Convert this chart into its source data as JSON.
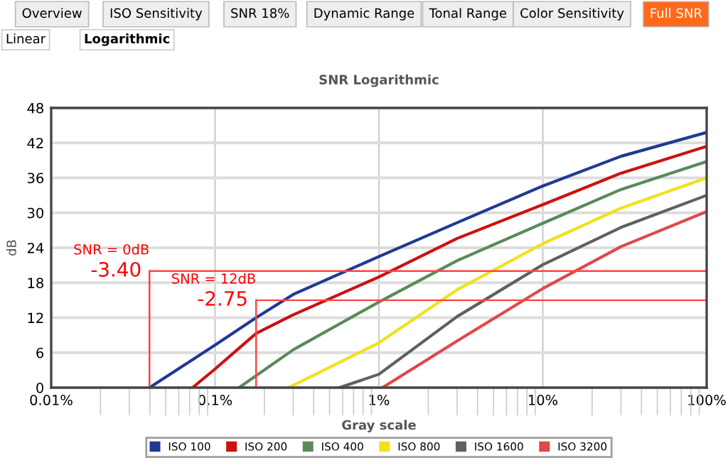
{
  "chart_data": {
    "type": "line",
    "title": "SNR Logarithmic",
    "xlabel": "Gray scale",
    "ylabel": "dB",
    "log": "x",
    "xlim": [
      0.01,
      100
    ],
    "xticks": [
      {
        "value": 0.01,
        "label": "0.01%"
      },
      {
        "value": 0.1,
        "label": "0.1%"
      },
      {
        "value": 1,
        "label": "1%"
      },
      {
        "value": 10,
        "label": "10%"
      },
      {
        "value": 100,
        "label": "100%"
      }
    ],
    "ylim": [
      0,
      48
    ],
    "yticks": [
      0,
      6,
      12,
      18,
      24,
      30,
      36,
      42,
      48
    ],
    "grid": true,
    "legend": "bottom",
    "marker": "none",
    "line_style": "solid",
    "series": [
      {
        "name": "ISO 100",
        "color": "#1f3a93",
        "x": [
          0.0398,
          0.1,
          0.178,
          0.3,
          1,
          3,
          10,
          30,
          100
        ],
        "values": [
          0,
          7.3,
          12,
          16,
          22.5,
          28.3,
          34.6,
          39.7,
          43.8
        ]
      },
      {
        "name": "ISO 200",
        "color": "#cc1111",
        "x": [
          0.0728,
          0.1,
          0.178,
          0.3,
          1,
          3,
          10,
          30,
          100
        ],
        "values": [
          0,
          3.2,
          9.3,
          12.5,
          19,
          25.6,
          31.4,
          36.8,
          41.4
        ]
      },
      {
        "name": "ISO 400",
        "color": "#5a8a5a",
        "x": [
          0.14,
          0.3,
          1,
          3,
          10,
          30,
          100
        ],
        "values": [
          0,
          6.5,
          14.7,
          21.8,
          28.2,
          34,
          38.8
        ]
      },
      {
        "name": "ISO 800",
        "color": "#f2e01a",
        "x": [
          0.28,
          0.5,
          1,
          3,
          10,
          30,
          100
        ],
        "values": [
          0,
          3.5,
          7.7,
          16.8,
          24.7,
          30.8,
          36
        ]
      },
      {
        "name": "ISO 1600",
        "color": "#606060",
        "x": [
          0.574,
          1,
          3,
          10,
          30,
          100
        ],
        "values": [
          0,
          2.3,
          12.2,
          21.1,
          27.5,
          33
        ]
      },
      {
        "name": "ISO 3200",
        "color": "#e04848",
        "x": [
          1.05,
          3,
          10,
          30,
          100
        ],
        "values": [
          0,
          8,
          17,
          24.2,
          30.2
        ]
      }
    ],
    "ref_lines": [
      {
        "axis": "y",
        "value": 20,
        "color": "#ff4444"
      },
      {
        "axis": "y",
        "value": 15,
        "color": "#ff4444"
      },
      {
        "axis": "x",
        "value": 0.0398,
        "color": "#ff4444"
      },
      {
        "axis": "x",
        "value": 0.178,
        "color": "#ff4444"
      }
    ],
    "annotations": [
      "Overview",
      "ISO Sensitivity",
      "SNR 18%",
      "Dynamic Range",
      "Tonal Range",
      "Color Sensitivity",
      "Full SNR",
      "Linear",
      "Logarithmic",
      "SNR = 0dB",
      {
        "text": "-3.40",
        "x": 0.0398,
        "y": 20
      },
      "SNR = 12dB",
      {
        "text": "-2.75",
        "x": 0.178,
        "y": 15
      }
    ]
  }
}
